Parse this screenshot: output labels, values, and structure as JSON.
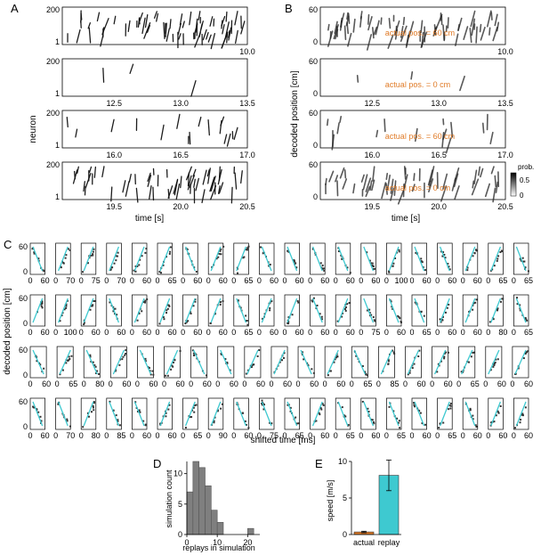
{
  "colors": {
    "accent": "#e07b27",
    "replay": "#3ec9d0",
    "hist": "#7f7f7f",
    "raster": "#111111"
  },
  "panels": {
    "A": {
      "letter": "A",
      "ylabel": "neuron",
      "xlabel": "time [s]",
      "yticks": [
        "200",
        "1"
      ]
    },
    "B": {
      "letter": "B",
      "ylabel": "decoded position [cm]",
      "xlabel": "time [s]",
      "yticks": [
        "60",
        "0"
      ],
      "colorbar": {
        "title": "prob.",
        "ticks": [
          "0.5",
          "0"
        ]
      }
    },
    "C": {
      "letter": "C",
      "ylabel": "decoded position [cm]",
      "xlabel": "shifted time [ms]",
      "yticks": [
        "60",
        "0"
      ]
    },
    "D": {
      "letter": "D",
      "ylabel": "simulation count",
      "xlabel": "replays in simulation"
    },
    "E": {
      "letter": "E",
      "ylabel": "speed [m/s]"
    }
  },
  "rows": [
    {
      "ticks": [
        "10.0"
      ],
      "annotation": "actual pos. = 60 cm"
    },
    {
      "ticks": [
        "12.5",
        "13.0",
        "13.5"
      ],
      "annotation": "actual pos. = 0 cm"
    },
    {
      "ticks": [
        "16.0",
        "16.5",
        "17.0"
      ],
      "annotation": "actual pos. = 60 cm"
    },
    {
      "ticks": [
        "19.5",
        "20.0",
        "20.5"
      ],
      "annotation": "actual pos. = 0 cm"
    }
  ],
  "grid_c": {
    "rows": [
      [
        "60",
        "70",
        "75",
        "70",
        "60",
        "65",
        "60",
        "60",
        "65",
        "60",
        "60",
        "60",
        "60",
        "60",
        "100",
        "60",
        "60",
        "60",
        "65",
        "65"
      ],
      [
        "60",
        "100",
        "60",
        "60",
        "60",
        "60",
        "60",
        "60",
        "65",
        "60",
        "60",
        "60",
        "60",
        "75",
        "60",
        "65",
        "60",
        "60",
        "80",
        "65"
      ],
      [
        "60",
        "65",
        "80",
        "60",
        "60",
        "60",
        "60",
        "60",
        "60",
        "60",
        "60",
        "60",
        "65",
        "85",
        "60",
        "60",
        "65",
        "60",
        "60"
      ],
      [
        "60",
        "70",
        "80",
        "85",
        "60",
        "60",
        "65",
        "90",
        "60",
        "75",
        "65",
        "60",
        "65",
        "60",
        "65",
        "60",
        "65",
        "60",
        "60",
        "60"
      ]
    ]
  },
  "chart_data": [
    {
      "type": "bar",
      "panel": "D",
      "x": [
        1,
        3,
        5,
        7,
        9,
        11,
        13,
        15,
        17,
        19,
        21
      ],
      "values": [
        7,
        12,
        11,
        8,
        4,
        2,
        0,
        0,
        0,
        0,
        1
      ],
      "bin_width": 2,
      "xlim": [
        0,
        24
      ],
      "ylim": [
        0,
        12
      ],
      "xticks": [
        0,
        10,
        20
      ],
      "yticks": [
        0,
        5,
        10
      ],
      "xlabel": "replays in simulation",
      "ylabel": "simulation count"
    },
    {
      "type": "bar",
      "panel": "E",
      "categories": [
        "actual",
        "replay"
      ],
      "values": [
        0.35,
        8.1
      ],
      "error": [
        0.1,
        2.1
      ],
      "colors": [
        "#e07b27",
        "#3ec9d0"
      ],
      "ylim": [
        0,
        10
      ],
      "yticks": [
        0,
        5,
        10
      ],
      "ylabel": "speed [m/s]"
    }
  ]
}
